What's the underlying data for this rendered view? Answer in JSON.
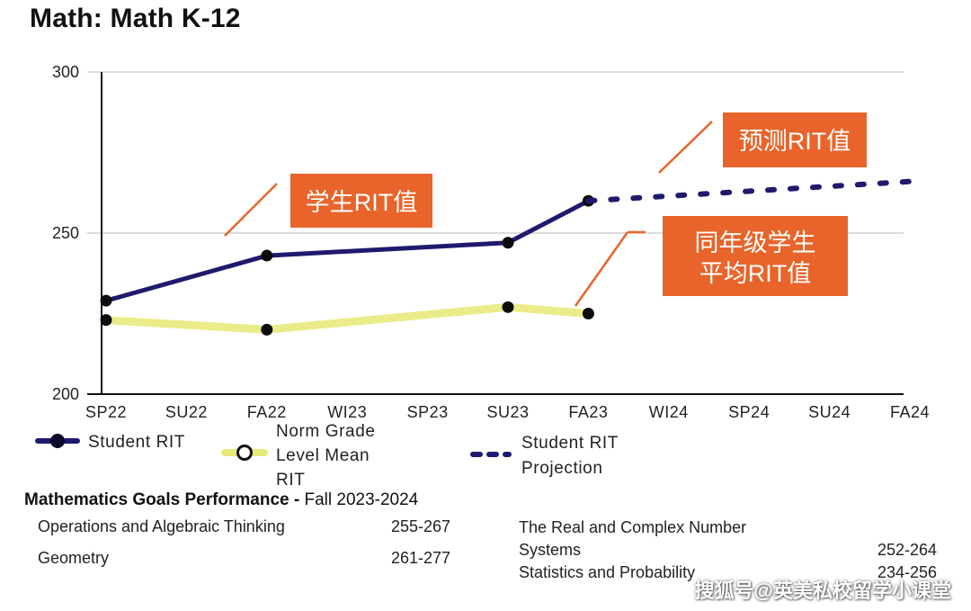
{
  "page": {
    "title": "Math: Math K-12"
  },
  "chart_data": {
    "type": "line",
    "categories": [
      "SP22",
      "SU22",
      "FA22",
      "WI23",
      "SP23",
      "SU23",
      "FA23",
      "WI24",
      "SP24",
      "SU24",
      "FA24"
    ],
    "ylim": [
      200,
      300
    ],
    "yticks": [
      "200",
      "250",
      "300"
    ],
    "grid": true,
    "legend_placement": "bottom",
    "series": [
      {
        "name": "Student RIT",
        "color": "#1f1a6e",
        "style": "solid",
        "points": [
          {
            "x": "SP22",
            "y": 229
          },
          {
            "x": "FA22",
            "y": 243
          },
          {
            "x": "SU23",
            "y": 247
          },
          {
            "x": "FA23",
            "y": 260
          }
        ]
      },
      {
        "name": "Norm Grade Level Mean RIT",
        "color": "#e9ea7c",
        "style": "solid",
        "points": [
          {
            "x": "SP22",
            "y": 223
          },
          {
            "x": "FA22",
            "y": 220
          },
          {
            "x": "SU23",
            "y": 227
          },
          {
            "x": "FA23",
            "y": 225
          }
        ]
      },
      {
        "name": "Student RIT Projection",
        "color": "#1f1a6e",
        "style": "dotted",
        "points": [
          {
            "x": "FA23",
            "y": 260
          },
          {
            "x": "FA24",
            "y": 266
          }
        ]
      }
    ],
    "legend": {
      "student_rit": "Student RIT",
      "norm_line1": "Norm Grade",
      "norm_line2": "Level Mean",
      "norm_line3": "RIT",
      "projection_line1": "Student RIT",
      "projection_line2": "Projection"
    },
    "annotations": {
      "student": "学生RIT值",
      "projection": "预测RIT值",
      "norm_line1": "同年级学生",
      "norm_line2": "平均RIT值"
    }
  },
  "goals": {
    "title_bold": "Mathematics Goals Performance -",
    "title_rest": " Fall 2023-2024",
    "items": [
      {
        "label": "Operations and Algebraic Thinking",
        "range": "255-267"
      },
      {
        "label": "Geometry",
        "range": "261-277"
      },
      {
        "label_line1": "The Real and Complex Number",
        "label_line2": "Systems",
        "range": "252-264"
      },
      {
        "label": "Statistics and Probability",
        "range": "234-256"
      }
    ]
  },
  "watermark": "搜狐号@英美私校留学小课堂"
}
